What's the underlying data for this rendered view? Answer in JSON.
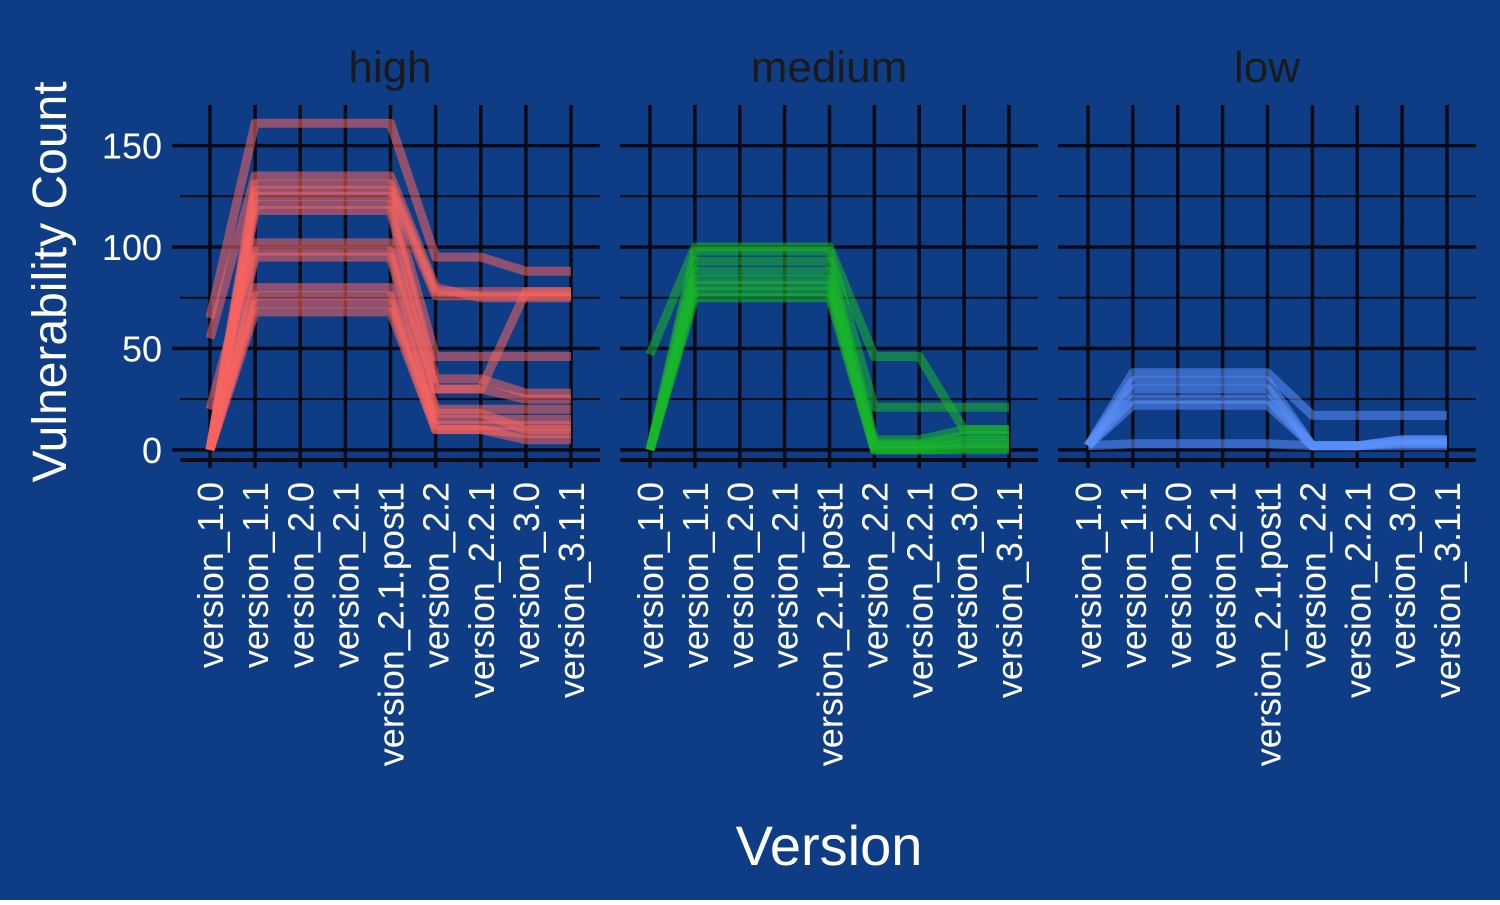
{
  "chart_data": {
    "type": "line",
    "xlabel": "Version",
    "ylabel": "Vulnerability Count",
    "ylim": [
      -5,
      170
    ],
    "yticks": [
      0,
      50,
      100,
      150
    ],
    "grid": true,
    "legend": "none",
    "background_color": "#0f3d85",
    "grid_color": "#0a0a14",
    "categories": [
      "version_1.0",
      "version_1.1",
      "version_2.0",
      "version_2.1",
      "version_2.1.post1",
      "version_2.2",
      "version_2.2.1",
      "version_3.0",
      "version_3.1.1"
    ],
    "panels": [
      {
        "label": "high",
        "color": "#f8645f",
        "series": [
          {
            "values": [
              65,
              161,
              161,
              161,
              161,
              95,
              95,
              88,
              88
            ]
          },
          {
            "values": [
              55,
              135,
              135,
              135,
              135,
              80,
              75,
              75,
              75
            ]
          },
          {
            "values": [
              0,
              131,
              131,
              131,
              131,
              78,
              78,
              78,
              78
            ]
          },
          {
            "values": [
              0,
              128,
              128,
              128,
              128,
              76,
              76,
              76,
              76
            ]
          },
          {
            "values": [
              0,
              125,
              125,
              125,
              125,
              46,
              46,
              46,
              46
            ]
          },
          {
            "values": [
              0,
              121,
              121,
              121,
              121,
              35,
              35,
              28,
              28
            ]
          },
          {
            "values": [
              0,
              118,
              118,
              118,
              118,
              30,
              30,
              25,
              25
            ]
          },
          {
            "values": [
              20,
              102,
              102,
              102,
              102,
              30,
              30,
              78,
              78
            ]
          },
          {
            "values": [
              0,
              98,
              98,
              98,
              98,
              20,
              20,
              20,
              20
            ]
          },
          {
            "values": [
              0,
              95,
              95,
              95,
              95,
              18,
              18,
              10,
              10
            ]
          },
          {
            "values": [
              0,
              80,
              80,
              80,
              80,
              15,
              15,
              15,
              15
            ]
          },
          {
            "values": [
              0,
              76,
              76,
              76,
              76,
              12,
              12,
              12,
              12
            ]
          },
          {
            "values": [
              0,
              72,
              72,
              72,
              72,
              10,
              10,
              8,
              8
            ]
          },
          {
            "values": [
              0,
              68,
              68,
              68,
              68,
              10,
              10,
              5,
              5
            ]
          }
        ]
      },
      {
        "label": "medium",
        "color": "#1ab629",
        "series": [
          {
            "values": [
              47,
              100,
              100,
              100,
              100,
              46,
              46,
              10,
              10
            ]
          },
          {
            "values": [
              0,
              98,
              98,
              98,
              98,
              21,
              21,
              21,
              21
            ]
          },
          {
            "values": [
              0,
              93,
              93,
              93,
              93,
              5,
              5,
              10,
              10
            ]
          },
          {
            "values": [
              0,
              88,
              88,
              88,
              88,
              3,
              3,
              7,
              7
            ]
          },
          {
            "values": [
              0,
              84,
              84,
              84,
              84,
              2,
              2,
              5,
              5
            ]
          },
          {
            "values": [
              0,
              81,
              81,
              81,
              81,
              1,
              1,
              3,
              3
            ]
          },
          {
            "values": [
              0,
              78,
              78,
              78,
              78,
              0,
              0,
              1,
              1
            ]
          },
          {
            "values": [
              0,
              75,
              75,
              75,
              75,
              0,
              0,
              0,
              0
            ]
          }
        ]
      },
      {
        "label": "low",
        "color": "#5b8ff9",
        "series": [
          {
            "values": [
              2,
              38,
              38,
              38,
              38,
              17,
              17,
              17,
              17
            ]
          },
          {
            "values": [
              2,
              34,
              34,
              34,
              34,
              2,
              2,
              2,
              2
            ]
          },
          {
            "values": [
              2,
              30,
              30,
              30,
              30,
              2,
              2,
              5,
              5
            ]
          },
          {
            "values": [
              2,
              25,
              25,
              25,
              25,
              2,
              2,
              5,
              5
            ]
          },
          {
            "values": [
              2,
              22,
              22,
              22,
              22,
              2,
              2,
              4,
              4
            ]
          },
          {
            "values": [
              2,
              3,
              3,
              3,
              3,
              2,
              2,
              3,
              3
            ]
          }
        ]
      }
    ]
  }
}
